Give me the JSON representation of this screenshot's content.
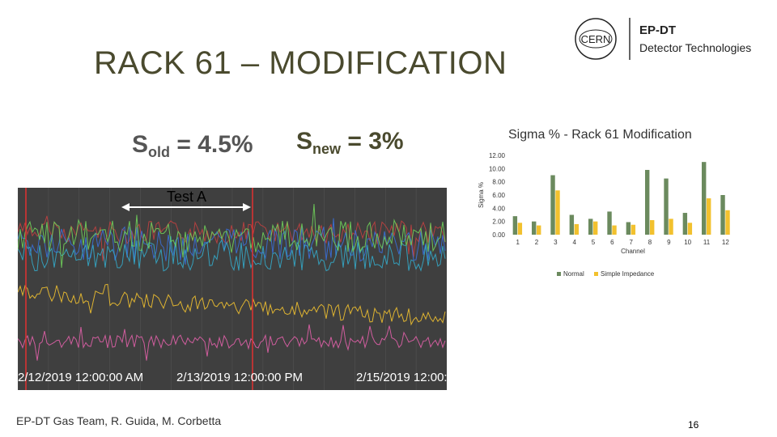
{
  "slide": {
    "title": "RACK 61 – MODIFICATION",
    "sigma_old": {
      "symbol": "S",
      "sub": "old",
      "rest": " = 4.5%"
    },
    "sigma_new": {
      "symbol": "S",
      "sub": "new",
      "rest": " = 3%"
    },
    "test_label": "Test A",
    "footer": "EP-DT Gas Team, R. Guida, M. Corbetta",
    "page_number": "16",
    "logo": {
      "org": "CERN",
      "line1": "EP-DT",
      "line2": "Detector Technologies"
    }
  },
  "trend": {
    "dates": [
      "2/12/2019 12:00:00 AM",
      "2/13/2019 12:00:00 PM",
      "2/15/2019 12:00:"
    ],
    "trace_colors": [
      "#c04040",
      "#3a6fd8",
      "#34a8c8",
      "#6fcf5a",
      "#f0c030",
      "#e060a8"
    ]
  },
  "chart_data": {
    "type": "bar",
    "title": "Sigma % - Rack 61 Modification",
    "xlabel": "Channel",
    "ylabel": "Sigma %",
    "ylim": [
      0,
      12
    ],
    "yticks": [
      "0.00",
      "2.00",
      "4.00",
      "6.00",
      "8.00",
      "10.00",
      "12.00"
    ],
    "categories": [
      "1",
      "2",
      "3",
      "4",
      "5",
      "6",
      "7",
      "8",
      "9",
      "10",
      "11",
      "12"
    ],
    "series": [
      {
        "name": "Normal",
        "color": "#6b8a5e",
        "values": [
          2.8,
          2.0,
          9.0,
          3.0,
          2.4,
          3.5,
          1.9,
          9.8,
          8.5,
          3.3,
          11.0,
          6.0
        ]
      },
      {
        "name": "Simple Impedance",
        "color": "#f2c12e",
        "values": [
          1.8,
          1.4,
          6.7,
          1.6,
          2.0,
          1.4,
          1.5,
          2.2,
          2.4,
          1.8,
          5.5,
          3.7
        ]
      }
    ],
    "legend": "bottom"
  }
}
